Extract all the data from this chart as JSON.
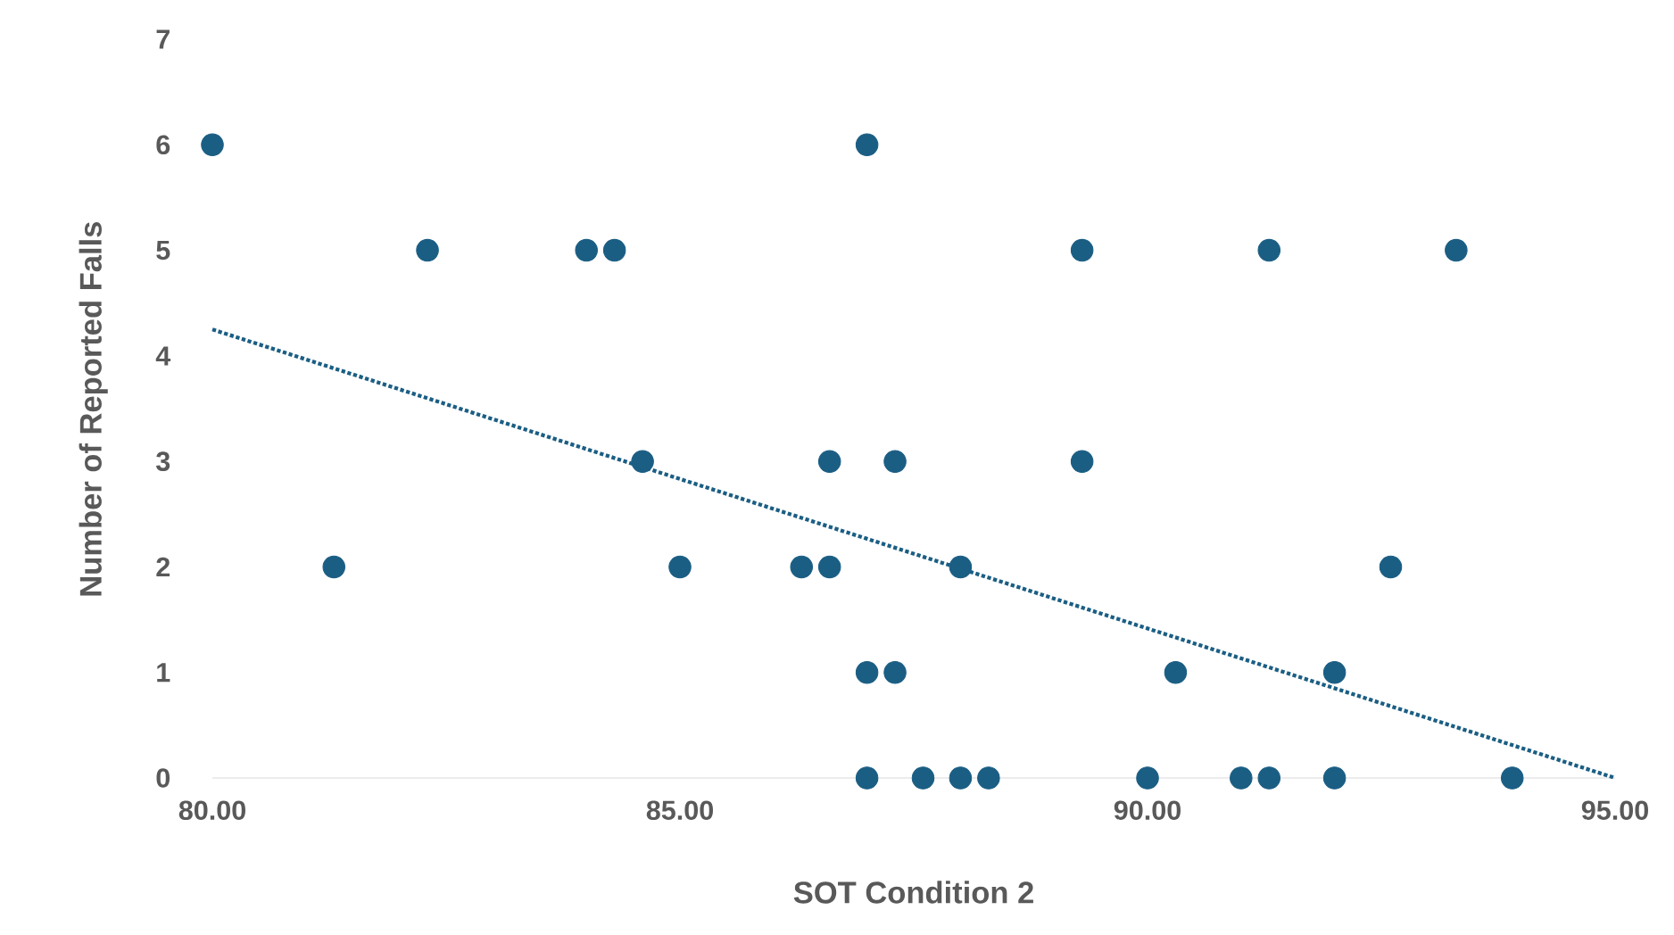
{
  "chart_data": {
    "type": "scatter",
    "xlabel": "SOT Condition 2",
    "ylabel": "Number of Reported Falls",
    "xlim": [
      80,
      95
    ],
    "ylim": [
      0,
      7
    ],
    "xticks": [
      {
        "value": 80,
        "label": "80.00"
      },
      {
        "value": 85,
        "label": "85.00"
      },
      {
        "value": 90,
        "label": "90.00"
      },
      {
        "value": 95,
        "label": "95.00"
      }
    ],
    "yticks": [
      0,
      1,
      2,
      3,
      4,
      5,
      6,
      7
    ],
    "grid": false,
    "series": [
      {
        "color": "#1b5e84",
        "marker": "circle",
        "x": [
          80.0,
          81.3,
          82.3,
          84.0,
          84.3,
          84.6,
          85.0,
          86.3,
          86.6,
          86.6,
          87.0,
          87.0,
          87.3,
          87.3,
          87.0,
          87.6,
          88.0,
          88.3,
          88.0,
          89.3,
          89.3,
          90.0,
          90.3,
          91.0,
          91.3,
          91.3,
          92.0,
          92.0,
          92.6,
          93.3,
          93.9
        ],
        "values": [
          6,
          2,
          5,
          5,
          5,
          3,
          2,
          2,
          2,
          3,
          6,
          1,
          1,
          3,
          0,
          0,
          0,
          0,
          2,
          5,
          3,
          0,
          1,
          0,
          0,
          5,
          1,
          0,
          2,
          5,
          0
        ]
      },
      {
        "type": "line",
        "color": "#1b5e84",
        "line_style": "dotted",
        "marker": "none",
        "x": [
          80,
          95
        ],
        "values": [
          4.25,
          0
        ]
      }
    ]
  }
}
